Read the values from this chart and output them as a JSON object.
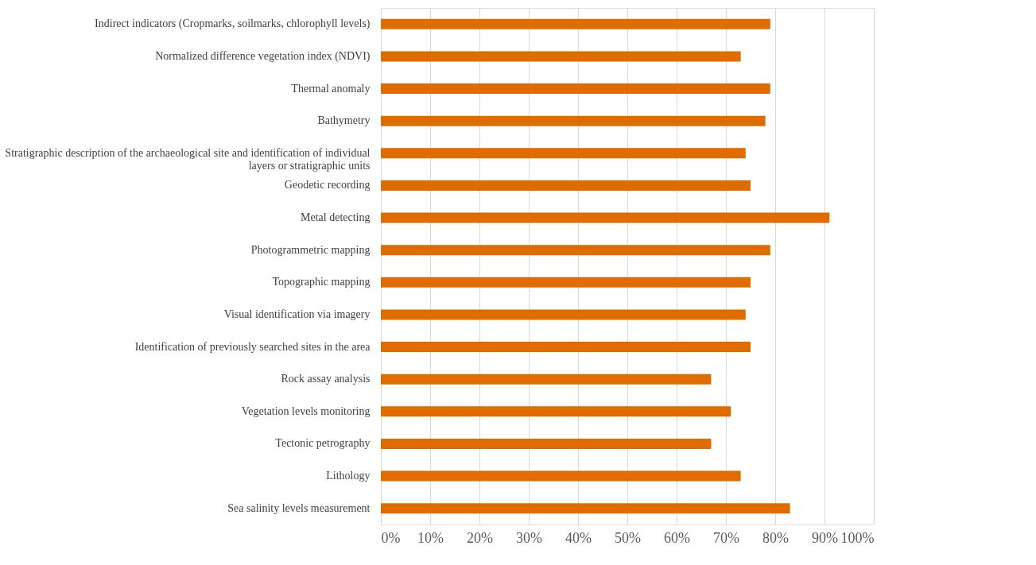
{
  "chart_data": {
    "type": "bar",
    "orientation": "horizontal",
    "categories": [
      "Indirect indicators (Cropmarks, soilmarks, chlorophyll levels)",
      "Normalized difference vegetation index (NDVI)",
      "Thermal anomaly",
      "Bathymetry",
      "Stratigraphic description of the archaeological site and identification of individual layers or stratigraphic units",
      "Geodetic recording",
      "Metal detecting",
      "Photogrammetric mapping",
      "Topographic mapping",
      "Visual identification via imagery",
      "Identification of previously searched sites in the area",
      "Rock assay analysis",
      "Vegetation levels monitoring",
      "Tectonic petrography",
      "Lithology",
      "Sea salinity levels measurement"
    ],
    "values": [
      0.79,
      0.73,
      0.79,
      0.78,
      0.74,
      0.75,
      0.91,
      0.79,
      0.75,
      0.74,
      0.75,
      0.67,
      0.71,
      0.67,
      0.73,
      0.83
    ],
    "color": "#e06c00",
    "xlim": [
      0,
      1
    ],
    "xticks": [
      {
        "value": 0,
        "label": "0%"
      },
      {
        "value": 0.1,
        "label": "10%"
      },
      {
        "value": 0.2,
        "label": "20%"
      },
      {
        "value": 0.3,
        "label": "30%"
      },
      {
        "value": 0.4,
        "label": "40%"
      },
      {
        "value": 0.5,
        "label": "50%"
      },
      {
        "value": 0.6,
        "label": "60%"
      },
      {
        "value": 0.7,
        "label": "70%"
      },
      {
        "value": 0.8,
        "label": "80%"
      },
      {
        "value": 0.9,
        "label": "90%"
      },
      {
        "value": 1,
        "label": "100%"
      }
    ],
    "grid": "x"
  }
}
